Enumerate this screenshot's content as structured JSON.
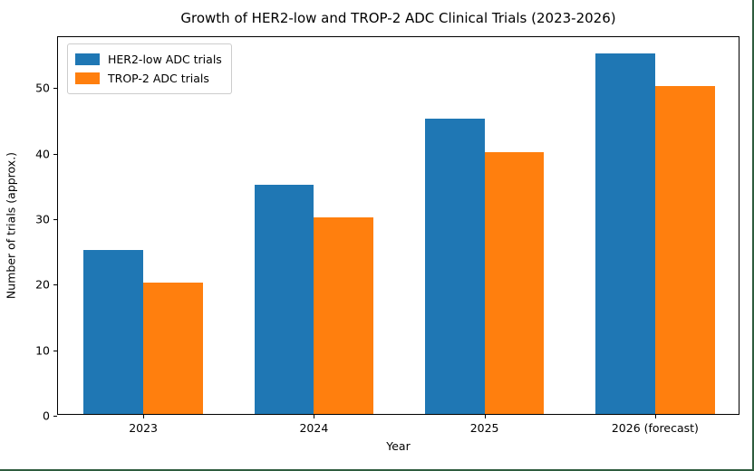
{
  "chart_data": {
    "type": "bar",
    "title": "Growth of HER2-low and TROP-2 ADC Clinical Trials (2023-2026)",
    "xlabel": "Year",
    "ylabel": "Number of trials (approx.)",
    "categories": [
      "2023",
      "2024",
      "2025",
      "2026 (forecast)"
    ],
    "series": [
      {
        "name": "HER2-low ADC trials",
        "color": "#1f77b4",
        "values": [
          25,
          35,
          45,
          55
        ]
      },
      {
        "name": "TROP-2 ADC trials",
        "color": "#ff7f0e",
        "values": [
          20,
          30,
          40,
          50
        ]
      }
    ],
    "yticks": [
      0,
      10,
      20,
      30,
      40,
      50
    ],
    "ylim": [
      0,
      57.75
    ],
    "grid": false,
    "legend_position": "upper left",
    "bar_width_fraction": 0.35,
    "plot_background": "#ffffff",
    "spine_color": "#000000"
  },
  "frame": {
    "border_color": "#2e5c3e"
  }
}
